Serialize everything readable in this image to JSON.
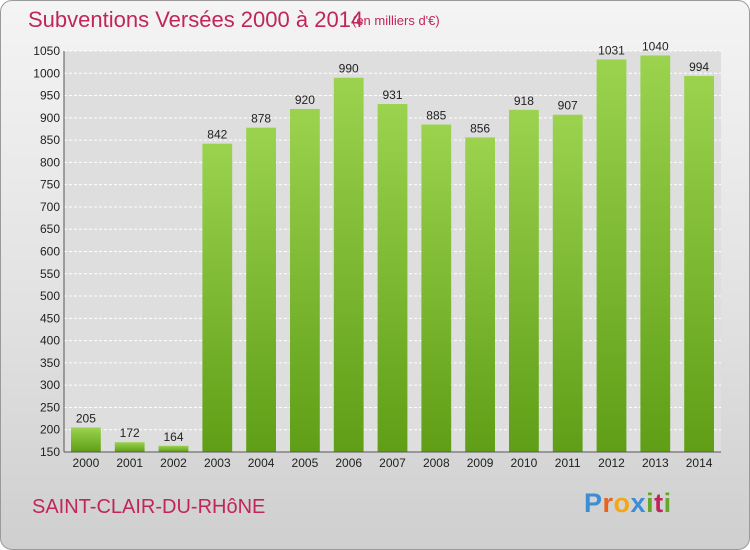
{
  "header": {
    "title": "Subventions Versées 2000 à 2014",
    "subtitle": "(en milliers d'€)"
  },
  "footer": {
    "commune": "SAINT-CLAIR-DU-RHôNE",
    "brand": "Proxiti"
  },
  "colors": {
    "title": "#c0265a",
    "bar_top": "#9bd34f",
    "bar_bottom": "#5f9e16",
    "grid": "#ffffff"
  },
  "chart_data": {
    "type": "bar",
    "title": "Subventions Versées 2000 à 2014",
    "subtitle": "(en milliers d'€)",
    "xlabel": "",
    "ylabel": "",
    "categories": [
      "2000",
      "2001",
      "2002",
      "2003",
      "2004",
      "2005",
      "2006",
      "2007",
      "2008",
      "2009",
      "2010",
      "2011",
      "2012",
      "2013",
      "2014"
    ],
    "values": [
      205,
      172,
      164,
      842,
      878,
      920,
      990,
      931,
      885,
      856,
      918,
      907,
      1031,
      1040,
      994
    ],
    "ylim": [
      150,
      1050
    ],
    "yticks": [
      150,
      200,
      250,
      300,
      350,
      400,
      450,
      500,
      550,
      600,
      650,
      700,
      750,
      800,
      850,
      900,
      950,
      1000,
      1050
    ],
    "grid": true,
    "legend": "none"
  }
}
